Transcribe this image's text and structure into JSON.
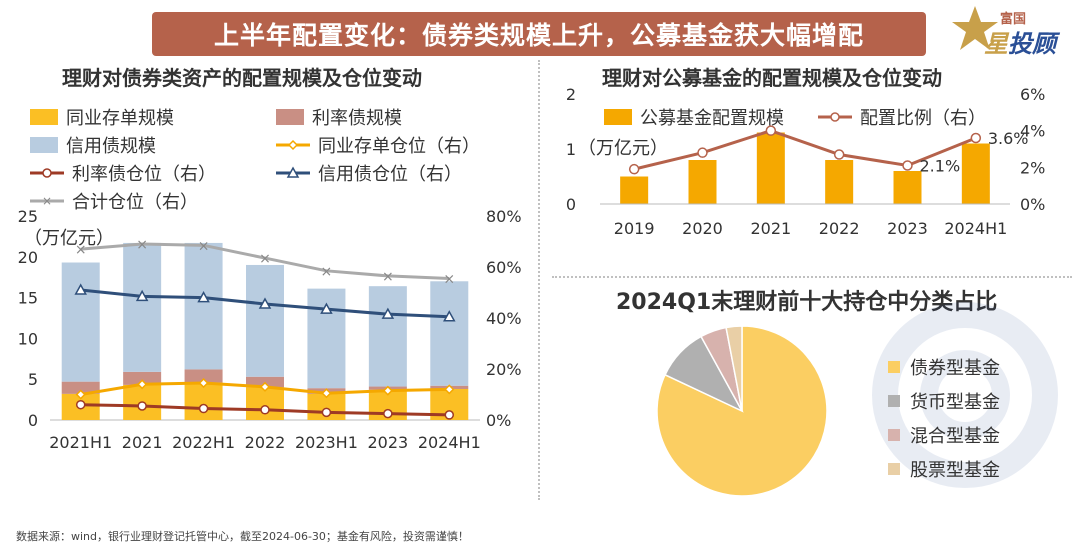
{
  "header": {
    "title": "上半年配置变化：债券类规模上升，公募基金获大幅增配"
  },
  "logo": {
    "small": "富国",
    "big_a": "星",
    "big_b": "投顾"
  },
  "colors": {
    "yellow": "#fbbf24",
    "brick": "#b5624b",
    "lightblue": "#b8cce0",
    "orange": "#f5a800",
    "darkred": "#9e3a25",
    "navy": "#2f4f7a",
    "gray": "#aaaaaa",
    "pie_bond": "#fbce62",
    "pie_money": "#b0b0b0",
    "pie_mixed": "#d7b2ad",
    "pie_stock": "#e9cfa6"
  },
  "left_chart": {
    "title": "理财对债券类资产的配置规模及仓位变动",
    "unit": "（万亿元）",
    "legend": [
      "同业存单规模",
      "利率债规模",
      "信用债规模",
      "同业存单仓位（右）",
      "利率债仓位（右）",
      "信用债仓位（右）",
      "合计仓位（右）"
    ]
  },
  "right_chart": {
    "title": "理财对公募基金的配置规模及仓位变动",
    "unit": "（万亿元）",
    "legend": [
      "公募基金配置规模",
      "配置比例（右）"
    ]
  },
  "pie_chart": {
    "title": "2024Q1末理财前十大持仓中分类占比",
    "legend": [
      "债券型基金",
      "货币型基金",
      "混合型基金",
      "股票型基金"
    ]
  },
  "footer": "数据来源：wind，银行业理财登记托管中心，截至2024-06-30；基金有风险，投资需谨慎！",
  "chart_data": [
    {
      "type": "bar",
      "title": "理财对债券类资产的配置规模及仓位变动",
      "ylabel": "万亿元",
      "categories": [
        "2021H1",
        "2021",
        "2022H1",
        "2022",
        "2023H1",
        "2023",
        "2024H1"
      ],
      "ylim": [
        0,
        25
      ],
      "y_ticks": [
        0,
        5,
        10,
        15,
        20,
        25
      ],
      "y2lim": [
        0,
        0.8
      ],
      "y2_ticks": [
        "0%",
        "20%",
        "40%",
        "60%",
        "80%"
      ],
      "stacked": true,
      "series": [
        {
          "name": "同业存单规模",
          "kind": "bar",
          "axis": "left",
          "values": [
            3.2,
            4.3,
            4.6,
            4.0,
            3.2,
            3.7,
            3.8
          ]
        },
        {
          "name": "利率债规模",
          "kind": "bar",
          "axis": "left",
          "values": [
            1.5,
            1.6,
            1.6,
            1.3,
            0.7,
            0.4,
            0.4
          ]
        },
        {
          "name": "信用债规模",
          "kind": "bar",
          "axis": "left",
          "values": [
            14.6,
            15.8,
            15.5,
            13.7,
            12.2,
            12.3,
            12.8
          ]
        },
        {
          "name": "同业存单仓位（右）",
          "kind": "line",
          "axis": "right",
          "values": [
            0.1,
            0.14,
            0.145,
            0.13,
            0.105,
            0.115,
            0.12
          ]
        },
        {
          "name": "利率债仓位（右）",
          "kind": "line",
          "axis": "right",
          "values": [
            0.06,
            0.055,
            0.045,
            0.04,
            0.03,
            0.025,
            0.02
          ]
        },
        {
          "name": "信用债仓位（右）",
          "kind": "line",
          "axis": "right",
          "values": [
            0.51,
            0.485,
            0.48,
            0.455,
            0.435,
            0.415,
            0.405
          ]
        },
        {
          "name": "合计仓位（右）",
          "kind": "line",
          "axis": "right",
          "values": [
            0.67,
            0.69,
            0.685,
            0.635,
            0.585,
            0.565,
            0.555
          ]
        }
      ]
    },
    {
      "type": "bar",
      "title": "理财对公募基金的配置规模及仓位变动",
      "ylabel": "万亿元",
      "categories": [
        "2019",
        "2020",
        "2021",
        "2022",
        "2023",
        "2024H1"
      ],
      "ylim": [
        0,
        2
      ],
      "y_ticks": [
        0,
        1,
        2
      ],
      "y2lim": [
        0,
        0.06
      ],
      "y2_ticks": [
        "0%",
        "2%",
        "4%",
        "6%"
      ],
      "series": [
        {
          "name": "公募基金配置规模",
          "kind": "bar",
          "axis": "left",
          "values": [
            0.5,
            0.8,
            1.3,
            0.8,
            0.6,
            1.1
          ]
        },
        {
          "name": "配置比例（右）",
          "kind": "line",
          "axis": "right",
          "values": [
            0.019,
            0.028,
            0.04,
            0.027,
            0.021,
            0.036
          ]
        }
      ],
      "data_labels": [
        {
          "index": 4,
          "text": "2.1%"
        },
        {
          "index": 5,
          "text": "3.6%"
        }
      ]
    },
    {
      "type": "pie",
      "title": "2024Q1末理财前十大持仓中分类占比",
      "categories": [
        "债券型基金",
        "货币型基金",
        "混合型基金",
        "股票型基金"
      ],
      "values": [
        0.82,
        0.1,
        0.05,
        0.03
      ]
    }
  ]
}
